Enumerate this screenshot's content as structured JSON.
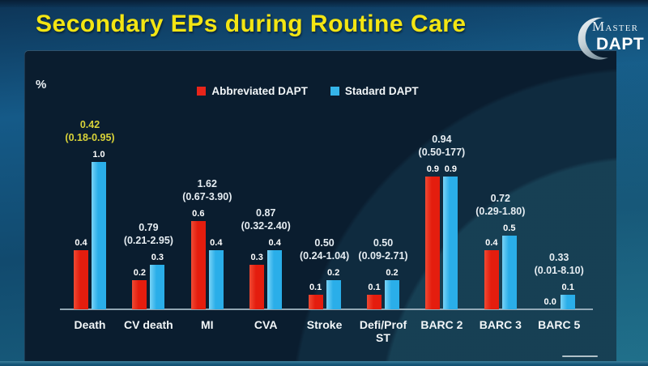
{
  "title": "Secondary EPs during Routine Care",
  "logo": {
    "word1": "Master",
    "word2": "DAPT"
  },
  "legend": {
    "position": "top-center"
  },
  "colors": {
    "abbreviated": "#e8251a",
    "standard": "#35b5ea",
    "hr_highlight": "#d9d339",
    "hr_normal": "#e6edf2",
    "title": "#f3e513"
  },
  "chart_data": {
    "type": "bar",
    "title": "Secondary EPs during Routine Care",
    "xlabel": "",
    "ylabel": "%",
    "ylim": [
      0,
      1.05
    ],
    "gridlines": false,
    "legend_position": "top-center",
    "categories": [
      "Death",
      "CV death",
      "MI",
      "CVA",
      "Stroke",
      "Defi/Prof\nST",
      "BARC 2",
      "BARC 3",
      "BARC 5"
    ],
    "series": [
      {
        "name": "Abbreviated DAPT",
        "color": "#e8251a",
        "values": [
          0.4,
          0.2,
          0.6,
          0.3,
          0.1,
          0.1,
          0.9,
          0.4,
          0.0
        ]
      },
      {
        "name": "Stadard DAPT",
        "color": "#35b5ea",
        "values": [
          1.0,
          0.3,
          0.4,
          0.4,
          0.2,
          0.2,
          0.9,
          0.5,
          0.1
        ]
      }
    ],
    "hazard_ratios": [
      {
        "hr": "0.42",
        "ci": "(0.18-0.95)",
        "highlight": true
      },
      {
        "hr": "0.79",
        "ci": "(0.21-2.95)",
        "highlight": false
      },
      {
        "hr": "1.62",
        "ci": "(0.67-3.90)",
        "highlight": false
      },
      {
        "hr": "0.87",
        "ci": "(0.32-2.40)",
        "highlight": false
      },
      {
        "hr": "0.50",
        "ci": "(0.24-1.04)",
        "highlight": false
      },
      {
        "hr": "0.50",
        "ci": "(0.09-2.71)",
        "highlight": false
      },
      {
        "hr": "0.94",
        "ci": "(0.50-177)",
        "highlight": false
      },
      {
        "hr": "0.72",
        "ci": "(0.29-1.80)",
        "highlight": false
      },
      {
        "hr": "0.33",
        "ci": "(0.01-8.10)",
        "highlight": false
      }
    ]
  }
}
